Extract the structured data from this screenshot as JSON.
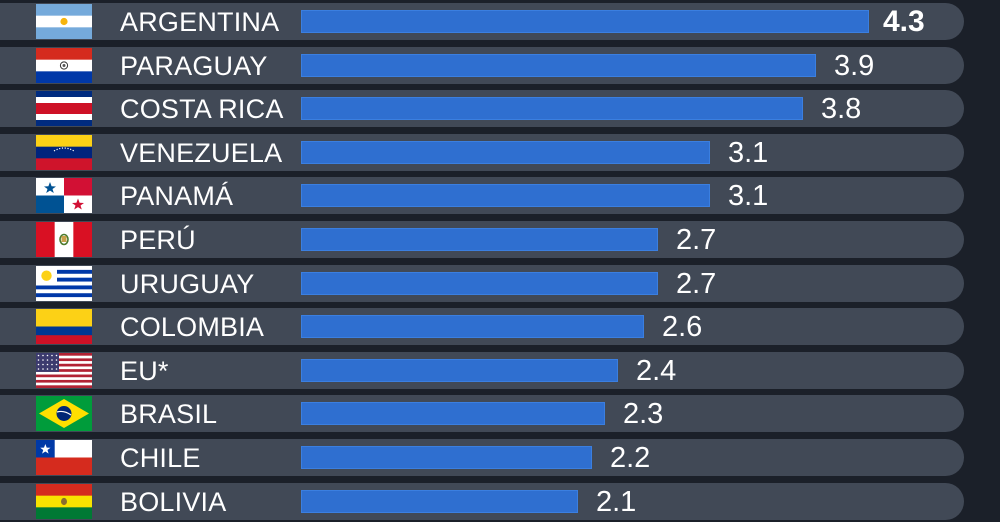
{
  "chart_data": {
    "type": "bar",
    "orientation": "horizontal",
    "categories": [
      "ARGENTINA",
      "PARAGUAY",
      "COSTA RICA",
      "VENEZUELA",
      "PANAMÁ",
      "PERÚ",
      "URUGUAY",
      "COLOMBIA",
      "EU*",
      "BRASIL",
      "CHILE",
      "BOLIVIA"
    ],
    "values": [
      4.3,
      3.9,
      3.8,
      3.1,
      3.1,
      2.7,
      2.7,
      2.6,
      2.4,
      2.3,
      2.2,
      2.1
    ],
    "value_labels": [
      "4.3",
      "3.9",
      "3.8",
      "3.1",
      "3.1",
      "2.7",
      "2.7",
      "2.6",
      "2.4",
      "2.3",
      "2.2",
      "2.1"
    ],
    "flags": [
      "argentina-flag",
      "paraguay-flag",
      "costa-rica-flag",
      "venezuela-flag",
      "panama-flag",
      "peru-flag",
      "uruguay-flag",
      "colombia-flag",
      "usa-flag",
      "brazil-flag",
      "chile-flag",
      "bolivia-flag"
    ],
    "title": "",
    "xlabel": "",
    "ylabel": "",
    "xlim": [
      0,
      4.3
    ],
    "grid": false,
    "legend": "none",
    "colors": {
      "background": "#1b2029",
      "row": "#414956",
      "bar": "#2f6fd0",
      "text": "#ffffff"
    }
  }
}
